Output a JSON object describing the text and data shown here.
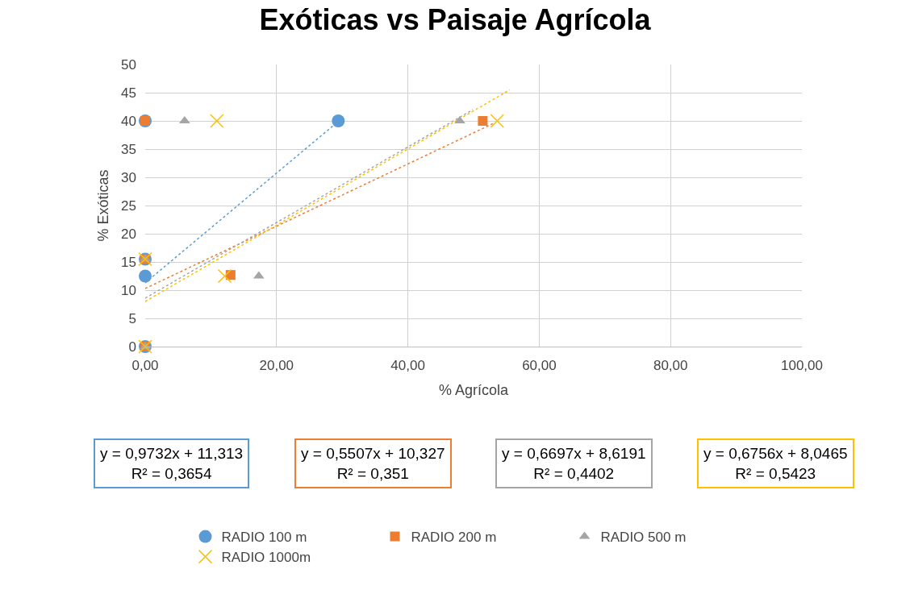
{
  "chart_data": {
    "type": "scatter",
    "title": "Exóticas vs Paisaje Agrícola",
    "xlabel": "% Agrícola",
    "ylabel": "% Exóticas",
    "xlim": [
      0,
      100
    ],
    "xticks": [
      {
        "value": 0,
        "label": "0,00"
      },
      {
        "value": 20,
        "label": "20,00"
      },
      {
        "value": 40,
        "label": "40,00"
      },
      {
        "value": 60,
        "label": "60,00"
      },
      {
        "value": 80,
        "label": "80,00"
      },
      {
        "value": 100,
        "label": "100,00"
      }
    ],
    "ylim": [
      0,
      50
    ],
    "yticks": [
      0,
      5,
      10,
      15,
      20,
      25,
      30,
      35,
      40,
      45,
      50
    ],
    "grid": true,
    "legend": "bottom",
    "series": [
      {
        "name": "RADIO 100 m",
        "color": "#5b9bd5",
        "marker": "circle",
        "x": [
          0,
          29.4,
          0,
          0,
          0
        ],
        "values": [
          40,
          40,
          15.5,
          12.5,
          0
        ]
      },
      {
        "name": "RADIO 200 m",
        "color": "#ed7d31",
        "marker": "square",
        "x": [
          0,
          51.4,
          13,
          0,
          0
        ],
        "values": [
          40,
          40,
          12.7,
          15.5,
          0
        ]
      },
      {
        "name": "RADIO 500 m",
        "color": "#a5a5a5",
        "marker": "triangle",
        "x": [
          6,
          47.9,
          17.3,
          0,
          0
        ],
        "values": [
          40,
          40,
          12.5,
          15.5,
          0
        ]
      },
      {
        "name": "RADIO 1000m",
        "color": "#ffc000",
        "marker": "cross",
        "x": [
          10.9,
          53.6,
          12.1,
          0,
          0
        ],
        "values": [
          40,
          40,
          12.5,
          15.5,
          0
        ]
      },
      {
        "type": "line",
        "color": "#5b9bd5",
        "line_style": "dotted",
        "x": [
          0,
          29.4
        ],
        "values": [
          11.3,
          39.9
        ]
      },
      {
        "type": "line",
        "color": "#ed7d31",
        "line_style": "dotted",
        "x": [
          0,
          53.1
        ],
        "values": [
          10.3,
          39.6
        ]
      },
      {
        "type": "line",
        "color": "#a5a5a5",
        "line_style": "dotted",
        "x": [
          0,
          49.9
        ],
        "values": [
          8.6,
          42
        ]
      },
      {
        "type": "line",
        "color": "#ffc000",
        "line_style": "dotted",
        "x": [
          0,
          55.5
        ],
        "values": [
          8,
          45.5
        ]
      }
    ],
    "annotations": [
      "y = 0,9732x + 11,313\nR² = 0,3654",
      "y = 0,5507x + 10,327\nR² = 0,351",
      "y = 0,6697x + 8,6191\nR² = 0,4402",
      "y = 0,6756x + 8,0465\nR² = 0,5423"
    ]
  }
}
